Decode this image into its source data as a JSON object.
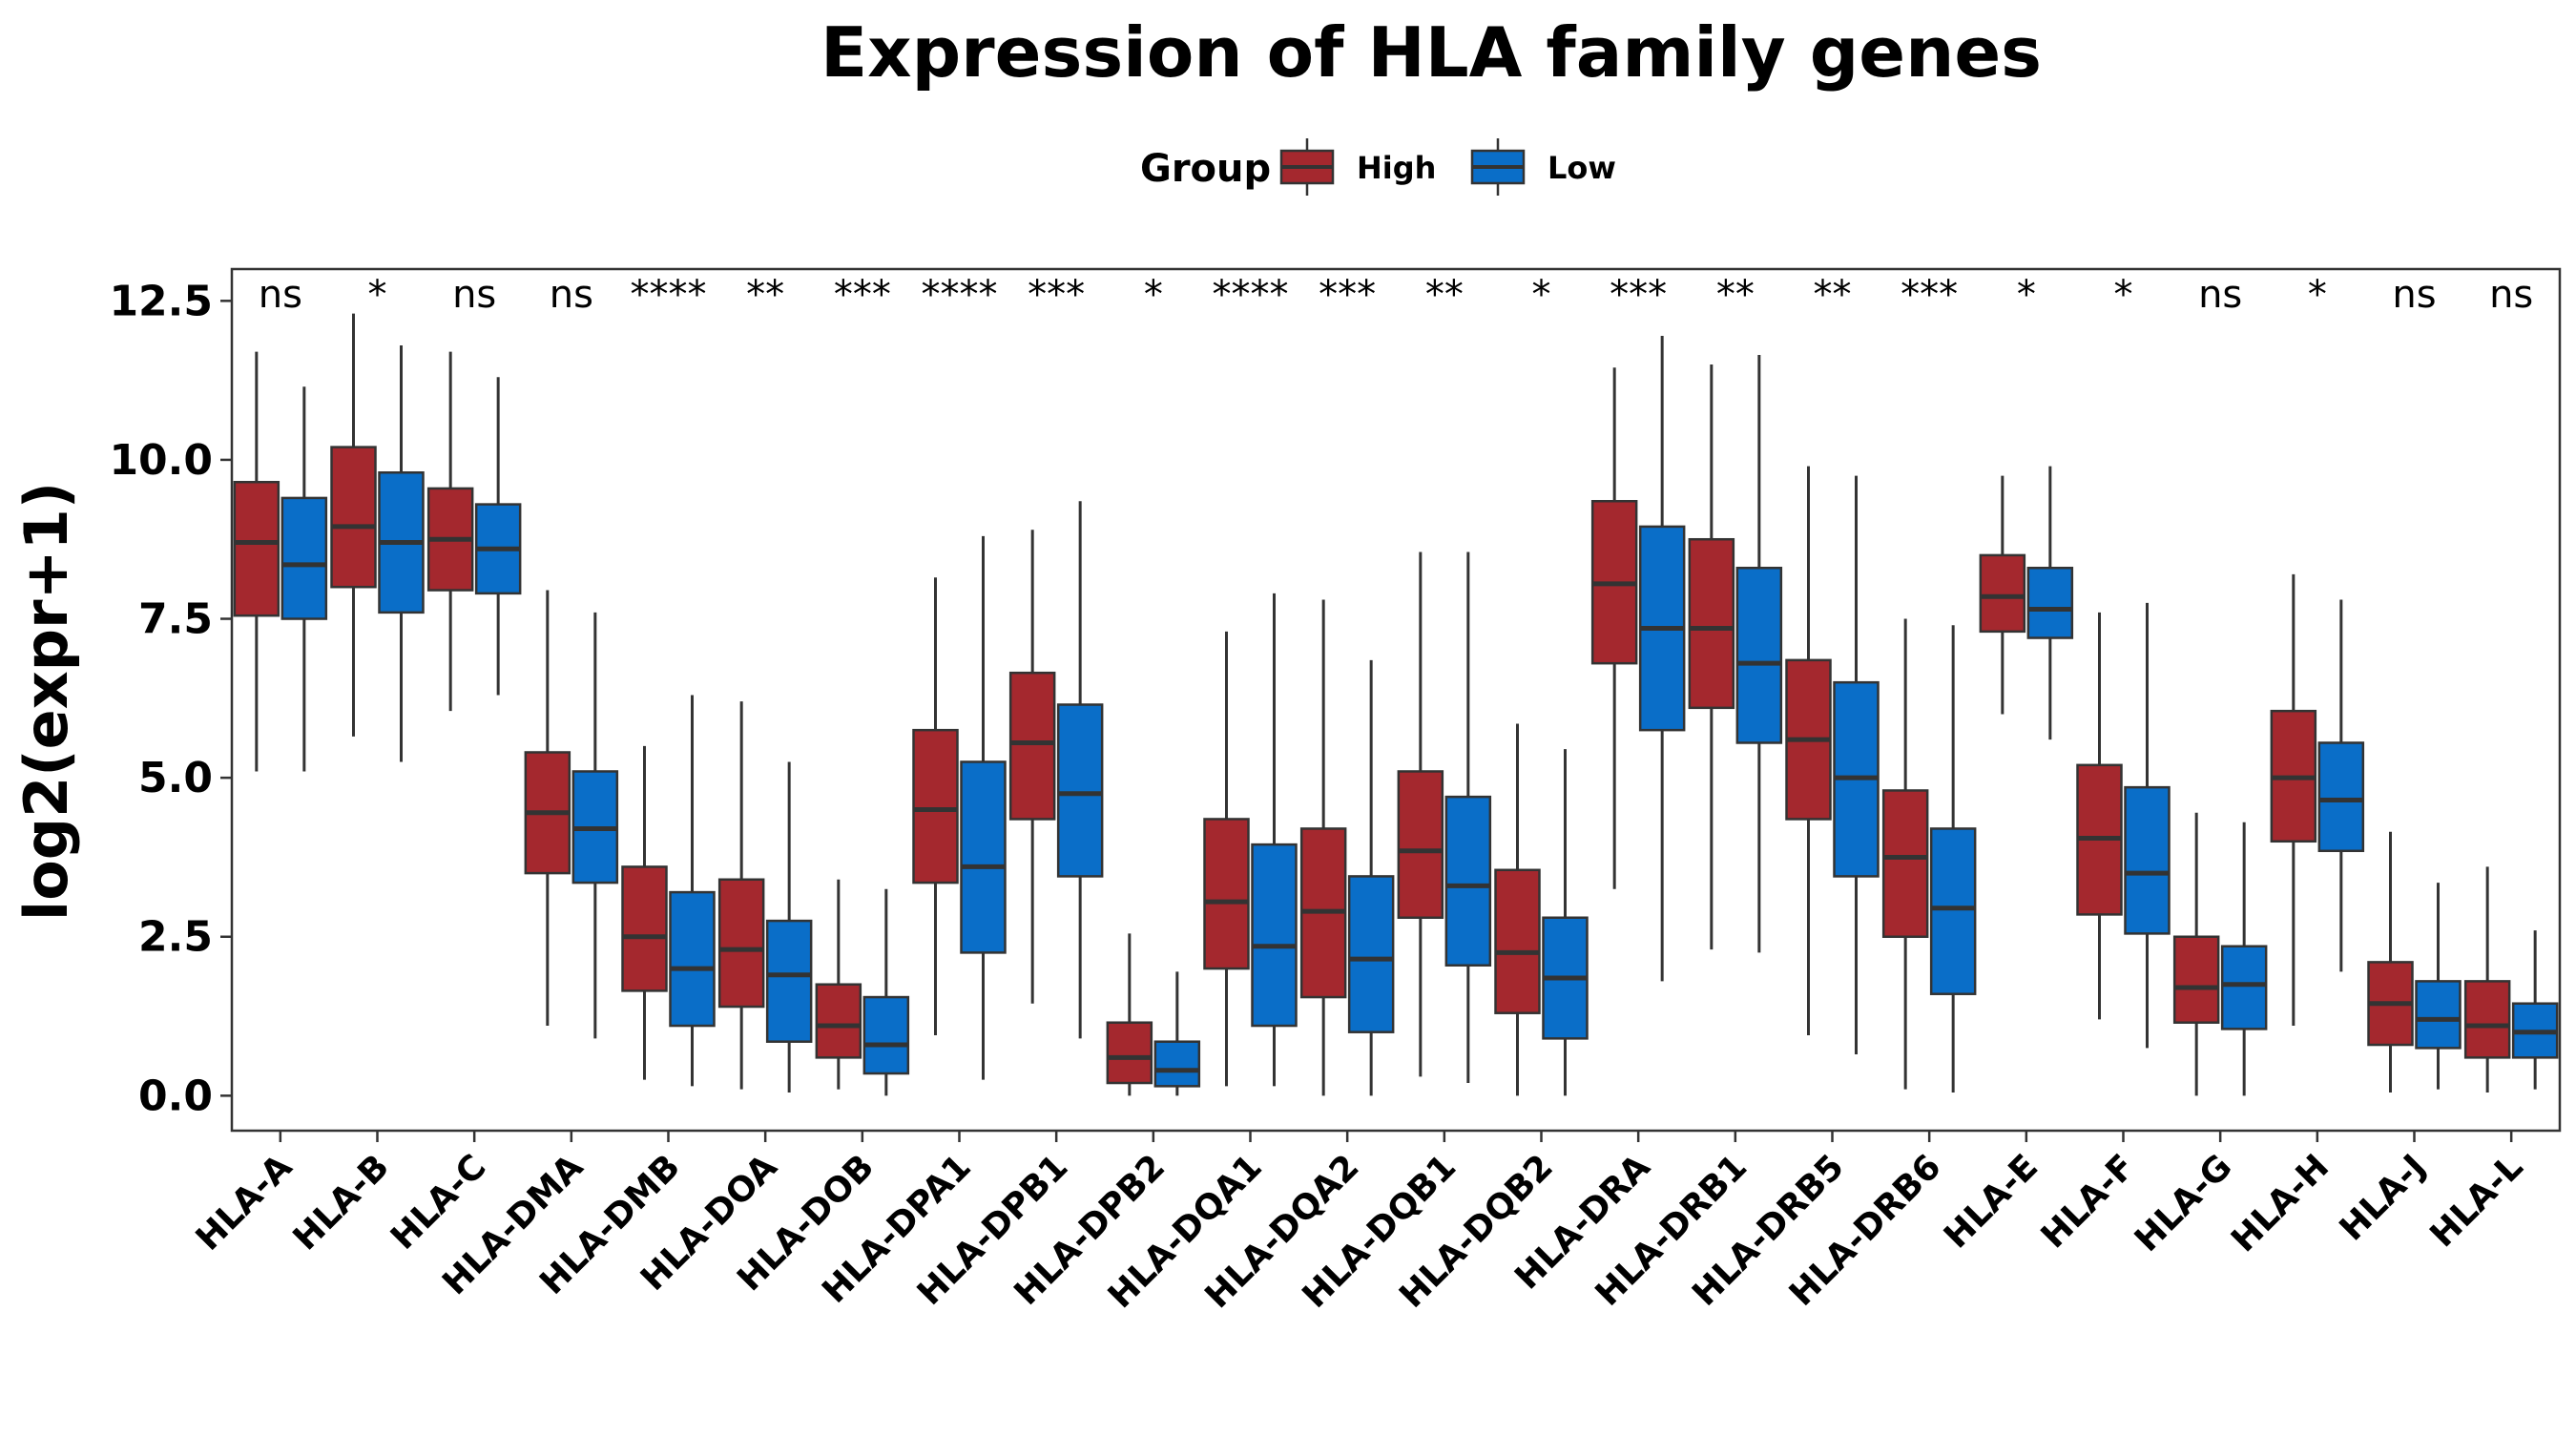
{
  "chart_data": {
    "type": "boxplot",
    "title": "Expression of HLA family genes",
    "ylabel": "log2(expr+1)",
    "xlabel": "",
    "ylim": [
      -0.55,
      13.0
    ],
    "yticks": [
      0.0,
      2.5,
      5.0,
      7.5,
      10.0,
      12.5
    ],
    "ytick_labels": [
      "0.0",
      "2.5",
      "5.0",
      "7.5",
      "10.0",
      "12.5"
    ],
    "legend": {
      "title": "Group",
      "position": "top",
      "entries": [
        {
          "name": "High",
          "color": "#a4282e"
        },
        {
          "name": "Low",
          "color": "#0a6ec8"
        }
      ]
    },
    "grid": false,
    "categories": [
      "HLA-A",
      "HLA-B",
      "HLA-C",
      "HLA-DMA",
      "HLA-DMB",
      "HLA-DOA",
      "HLA-DOB",
      "HLA-DPA1",
      "HLA-DPB1",
      "HLA-DPB2",
      "HLA-DQA1",
      "HLA-DQA2",
      "HLA-DQB1",
      "HLA-DQB2",
      "HLA-DRA",
      "HLA-DRB1",
      "HLA-DRB5",
      "HLA-DRB6",
      "HLA-E",
      "HLA-F",
      "HLA-G",
      "HLA-H",
      "HLA-J",
      "HLA-L"
    ],
    "significance": [
      "ns",
      "*",
      "ns",
      "ns",
      "****",
      "**",
      "***",
      "****",
      "***",
      "*",
      "****",
      "***",
      "**",
      "*",
      "***",
      "**",
      "**",
      "***",
      "*",
      "*",
      "ns",
      "*",
      "ns",
      "ns"
    ],
    "series": [
      {
        "name": "High",
        "color": "#a4282e",
        "boxes": [
          {
            "min": 5.1,
            "q1": 7.55,
            "median": 8.7,
            "q3": 9.65,
            "max": 11.7
          },
          {
            "min": 5.65,
            "q1": 8.0,
            "median": 8.95,
            "q3": 10.2,
            "max": 12.3
          },
          {
            "min": 6.05,
            "q1": 7.95,
            "median": 8.75,
            "q3": 9.55,
            "max": 11.7
          },
          {
            "min": 1.1,
            "q1": 3.5,
            "median": 4.45,
            "q3": 5.4,
            "max": 7.95
          },
          {
            "min": 0.25,
            "q1": 1.65,
            "median": 2.5,
            "q3": 3.6,
            "max": 5.5
          },
          {
            "min": 0.1,
            "q1": 1.4,
            "median": 2.3,
            "q3": 3.4,
            "max": 6.2
          },
          {
            "min": 0.1,
            "q1": 0.6,
            "median": 1.1,
            "q3": 1.75,
            "max": 3.4
          },
          {
            "min": 0.95,
            "q1": 3.35,
            "median": 4.5,
            "q3": 5.75,
            "max": 8.15
          },
          {
            "min": 1.45,
            "q1": 4.35,
            "median": 5.55,
            "q3": 6.65,
            "max": 8.9
          },
          {
            "min": 0.0,
            "q1": 0.2,
            "median": 0.6,
            "q3": 1.15,
            "max": 2.55
          },
          {
            "min": 0.15,
            "q1": 2.0,
            "median": 3.05,
            "q3": 4.35,
            "max": 7.3
          },
          {
            "min": 0.0,
            "q1": 1.55,
            "median": 2.9,
            "q3": 4.2,
            "max": 7.8
          },
          {
            "min": 0.3,
            "q1": 2.8,
            "median": 3.85,
            "q3": 5.1,
            "max": 8.55
          },
          {
            "min": 0.0,
            "q1": 1.3,
            "median": 2.25,
            "q3": 3.55,
            "max": 5.85
          },
          {
            "min": 3.25,
            "q1": 6.8,
            "median": 8.05,
            "q3": 9.35,
            "max": 11.45
          },
          {
            "min": 2.3,
            "q1": 6.1,
            "median": 7.35,
            "q3": 8.75,
            "max": 11.5
          },
          {
            "min": 0.95,
            "q1": 4.35,
            "median": 5.6,
            "q3": 6.85,
            "max": 9.9
          },
          {
            "min": 0.1,
            "q1": 2.5,
            "median": 3.75,
            "q3": 4.8,
            "max": 7.5
          },
          {
            "min": 6.0,
            "q1": 7.3,
            "median": 7.85,
            "q3": 8.5,
            "max": 9.75
          },
          {
            "min": 1.2,
            "q1": 2.85,
            "median": 4.05,
            "q3": 5.2,
            "max": 7.6
          },
          {
            "min": 0.0,
            "q1": 1.15,
            "median": 1.7,
            "q3": 2.5,
            "max": 4.45
          },
          {
            "min": 1.1,
            "q1": 4.0,
            "median": 5.0,
            "q3": 6.05,
            "max": 8.2
          },
          {
            "min": 0.05,
            "q1": 0.8,
            "median": 1.45,
            "q3": 2.1,
            "max": 4.15
          },
          {
            "min": 0.05,
            "q1": 0.6,
            "median": 1.1,
            "q3": 1.8,
            "max": 3.6
          }
        ]
      },
      {
        "name": "Low",
        "color": "#0a6ec8",
        "boxes": [
          {
            "min": 5.1,
            "q1": 7.5,
            "median": 8.35,
            "q3": 9.4,
            "max": 11.15
          },
          {
            "min": 5.25,
            "q1": 7.6,
            "median": 8.7,
            "q3": 9.8,
            "max": 11.8
          },
          {
            "min": 6.3,
            "q1": 7.9,
            "median": 8.6,
            "q3": 9.3,
            "max": 11.3
          },
          {
            "min": 0.9,
            "q1": 3.35,
            "median": 4.2,
            "q3": 5.1,
            "max": 7.6
          },
          {
            "min": 0.15,
            "q1": 1.1,
            "median": 2.0,
            "q3": 3.2,
            "max": 6.3
          },
          {
            "min": 0.05,
            "q1": 0.85,
            "median": 1.9,
            "q3": 2.75,
            "max": 5.25
          },
          {
            "min": 0.0,
            "q1": 0.35,
            "median": 0.8,
            "q3": 1.55,
            "max": 3.25
          },
          {
            "min": 0.25,
            "q1": 2.25,
            "median": 3.6,
            "q3": 5.25,
            "max": 8.8
          },
          {
            "min": 0.9,
            "q1": 3.45,
            "median": 4.75,
            "q3": 6.15,
            "max": 9.35
          },
          {
            "min": 0.0,
            "q1": 0.15,
            "median": 0.4,
            "q3": 0.85,
            "max": 1.95
          },
          {
            "min": 0.15,
            "q1": 1.1,
            "median": 2.35,
            "q3": 3.95,
            "max": 7.9
          },
          {
            "min": 0.0,
            "q1": 1.0,
            "median": 2.15,
            "q3": 3.45,
            "max": 6.85
          },
          {
            "min": 0.2,
            "q1": 2.05,
            "median": 3.3,
            "q3": 4.7,
            "max": 8.55
          },
          {
            "min": 0.0,
            "q1": 0.9,
            "median": 1.85,
            "q3": 2.8,
            "max": 5.45
          },
          {
            "min": 1.8,
            "q1": 5.75,
            "median": 7.35,
            "q3": 8.95,
            "max": 11.95
          },
          {
            "min": 2.25,
            "q1": 5.55,
            "median": 6.8,
            "q3": 8.3,
            "max": 11.65
          },
          {
            "min": 0.65,
            "q1": 3.45,
            "median": 5.0,
            "q3": 6.5,
            "max": 9.75
          },
          {
            "min": 0.05,
            "q1": 1.6,
            "median": 2.95,
            "q3": 4.2,
            "max": 7.4
          },
          {
            "min": 5.6,
            "q1": 7.2,
            "median": 7.65,
            "q3": 8.3,
            "max": 9.9
          },
          {
            "min": 0.75,
            "q1": 2.55,
            "median": 3.5,
            "q3": 4.85,
            "max": 7.75
          },
          {
            "min": 0.0,
            "q1": 1.05,
            "median": 1.75,
            "q3": 2.35,
            "max": 4.3
          },
          {
            "min": 1.95,
            "q1": 3.85,
            "median": 4.65,
            "q3": 5.55,
            "max": 7.8
          },
          {
            "min": 0.1,
            "q1": 0.75,
            "median": 1.2,
            "q3": 1.8,
            "max": 3.35
          },
          {
            "min": 0.1,
            "q1": 0.6,
            "median": 1.0,
            "q3": 1.45,
            "max": 2.6
          }
        ]
      }
    ]
  }
}
